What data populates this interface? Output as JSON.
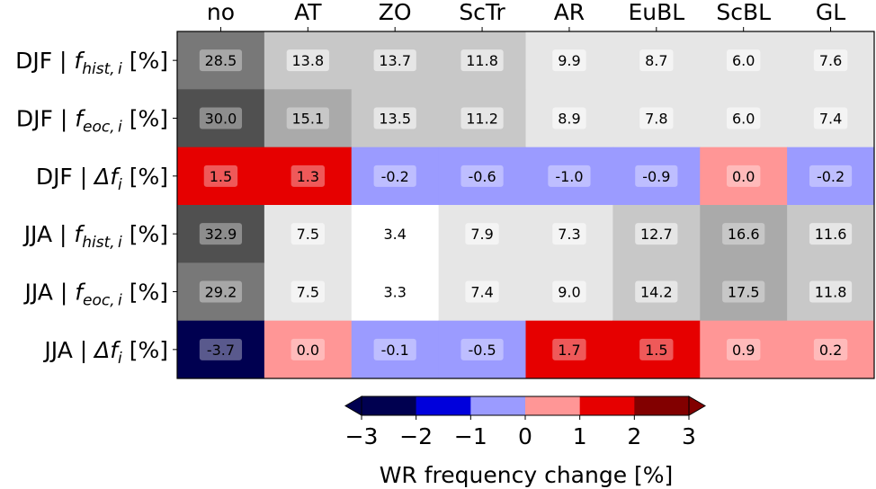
{
  "chart_data": {
    "type": "heatmap",
    "columns": [
      "no",
      "AT",
      "ZO",
      "ScTr",
      "AR",
      "EuBL",
      "ScBL",
      "GL"
    ],
    "rows": [
      {
        "season": "DJF",
        "symbol": "f",
        "subscript": "hist, i",
        "unit": "[%]",
        "kind": "freq",
        "values": [
          28.5,
          13.8,
          13.7,
          11.8,
          9.9,
          8.7,
          6.0,
          7.6
        ]
      },
      {
        "season": "DJF",
        "symbol": "f",
        "subscript": "eoc, i",
        "unit": "[%]",
        "kind": "freq",
        "values": [
          30.0,
          15.1,
          13.5,
          11.2,
          8.9,
          7.8,
          6.0,
          7.4
        ]
      },
      {
        "season": "DJF",
        "symbol": "Δf",
        "subscript": "i",
        "unit": "[%]",
        "kind": "delta",
        "values": [
          1.5,
          1.3,
          -0.2,
          -0.6,
          -1.0,
          -0.9,
          0.0,
          -0.2
        ]
      },
      {
        "season": "JJA",
        "symbol": "f",
        "subscript": "hist, i",
        "unit": "[%]",
        "kind": "freq",
        "values": [
          32.9,
          7.5,
          3.4,
          7.9,
          7.3,
          12.7,
          16.6,
          11.6
        ]
      },
      {
        "season": "JJA",
        "symbol": "f",
        "subscript": "eoc, i",
        "unit": "[%]",
        "kind": "freq",
        "values": [
          29.2,
          7.5,
          3.3,
          7.4,
          9.0,
          14.2,
          17.5,
          11.8
        ]
      },
      {
        "season": "JJA",
        "symbol": "Δf",
        "subscript": "i",
        "unit": "[%]",
        "kind": "delta",
        "values": [
          -3.7,
          0.0,
          -0.1,
          -0.5,
          1.7,
          1.5,
          0.9,
          0.2
        ]
      }
    ],
    "colorbar": {
      "label": "WR frequency change [%]",
      "ticks": [
        "−3",
        "−2",
        "−1",
        "0",
        "1",
        "2",
        "3"
      ],
      "tick_values": [
        -3,
        -2,
        -1,
        0,
        1,
        2,
        3
      ],
      "extend": "both",
      "colors": [
        "#000050",
        "#0000dc",
        "#9b9bff",
        "#ff9696",
        "#e60000",
        "#820000"
      ],
      "under_color": "#000050",
      "over_color": "#820000"
    },
    "freq_color_steps": [
      {
        "min": 0,
        "max": 5,
        "color": "#ffffff"
      },
      {
        "min": 5,
        "max": 10,
        "color": "#e6e6e6"
      },
      {
        "min": 10,
        "max": 15,
        "color": "#c8c8c8"
      },
      {
        "min": 15,
        "max": 20,
        "color": "#aaaaaa"
      },
      {
        "min": 20,
        "max": 30,
        "color": "#787878"
      },
      {
        "min": 30,
        "max": 100,
        "color": "#505050"
      }
    ]
  }
}
